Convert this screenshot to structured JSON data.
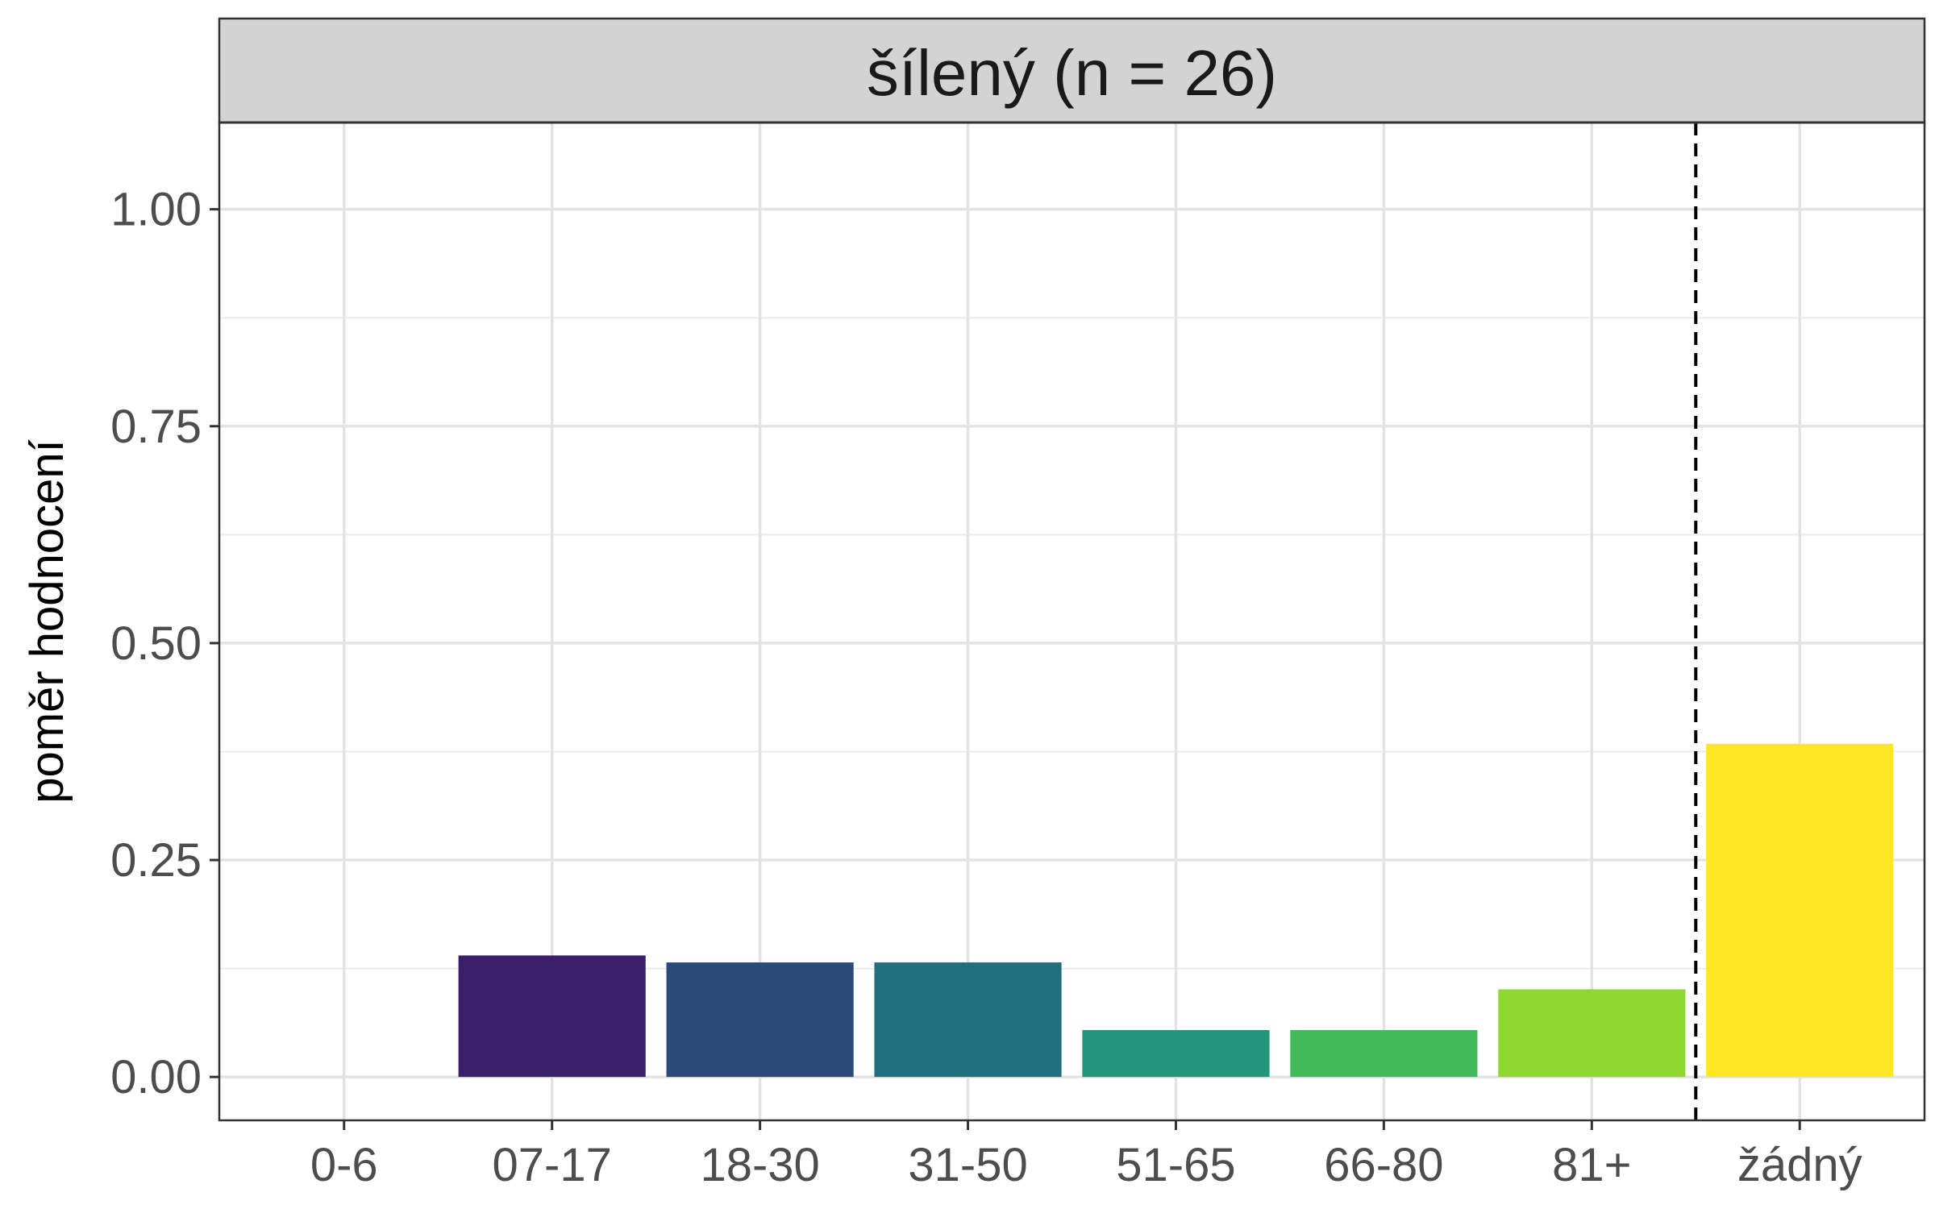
{
  "chart_data": {
    "type": "bar",
    "title": "šílený (n = 26)",
    "xlabel": "",
    "ylabel": "poměr hodnocení",
    "categories": [
      "0-6",
      "07-17",
      "18-30",
      "31-50",
      "51-65",
      "66-80",
      "81+",
      "žádný"
    ],
    "values": [
      0.0,
      0.14,
      0.132,
      0.132,
      0.054,
      0.054,
      0.101,
      0.384
    ],
    "colors": [
      "#440154",
      "#3a1f6a",
      "#2b4a7a",
      "#206f7b",
      "#22947a",
      "#41b859",
      "#8fd630",
      "#fde725"
    ],
    "ylim": [
      -0.05,
      1.1
    ],
    "yticks": [
      "0.00",
      "0.25",
      "0.50",
      "0.75",
      "1.00"
    ],
    "ytick_values": [
      0,
      0.25,
      0.5,
      0.75,
      1.0
    ],
    "reference_line": {
      "position": "between 81+ and žádný",
      "style": "dashed"
    },
    "grid": true,
    "legend": "none"
  }
}
